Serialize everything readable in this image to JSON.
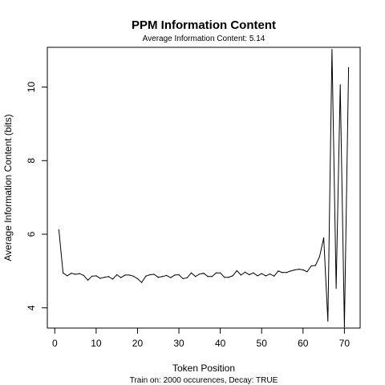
{
  "chart_data": {
    "type": "line",
    "title": "PPM Information Content",
    "subtitle": "Average Information Content: 5.14",
    "xlabel": "Token Position",
    "ylabel": "Average Information Content (bits)",
    "footnote": "Train on: 2000 occurences, Decay: TRUE",
    "xlim": [
      -1.8,
      73.8
    ],
    "ylim": [
      3.45,
      11.08
    ],
    "xticks": [
      0,
      10,
      20,
      30,
      40,
      50,
      60,
      70
    ],
    "yticks": [
      4,
      6,
      8,
      10
    ],
    "grid": false,
    "legend": "none",
    "line_color": "#000000",
    "series": [
      {
        "x": [
          1,
          2,
          3,
          4,
          5,
          6,
          7,
          8,
          9,
          10,
          11,
          12,
          13,
          14,
          15,
          16,
          17,
          18,
          19,
          20,
          21,
          22,
          23,
          24,
          25,
          26,
          27,
          28,
          29,
          30,
          31,
          32,
          33,
          34,
          35,
          36,
          37,
          38,
          39,
          40,
          41,
          42,
          43,
          44,
          45,
          46,
          47,
          48,
          49,
          50,
          51,
          52,
          53,
          54,
          55,
          56,
          57,
          58,
          59,
          60,
          61,
          62,
          63,
          64,
          65,
          66,
          67,
          68,
          69,
          70,
          71
        ],
        "values": [
          6.12,
          4.95,
          4.87,
          4.94,
          4.91,
          4.93,
          4.88,
          4.75,
          4.86,
          4.87,
          4.8,
          4.83,
          4.85,
          4.78,
          4.9,
          4.82,
          4.89,
          4.89,
          4.86,
          4.79,
          4.69,
          4.86,
          4.9,
          4.91,
          4.83,
          4.85,
          4.88,
          4.82,
          4.89,
          4.9,
          4.79,
          4.82,
          4.95,
          4.85,
          4.92,
          4.94,
          4.85,
          4.85,
          4.95,
          4.95,
          4.83,
          4.83,
          4.87,
          5.01,
          4.89,
          4.97,
          4.9,
          4.95,
          4.87,
          4.93,
          4.87,
          4.92,
          4.86,
          5.0,
          4.96,
          4.96,
          5.0,
          5.03,
          5.05,
          5.03,
          4.98,
          5.14,
          5.15,
          5.39,
          5.9,
          3.64,
          11.02,
          4.53,
          10.06,
          3.48,
          10.53
        ]
      }
    ]
  }
}
